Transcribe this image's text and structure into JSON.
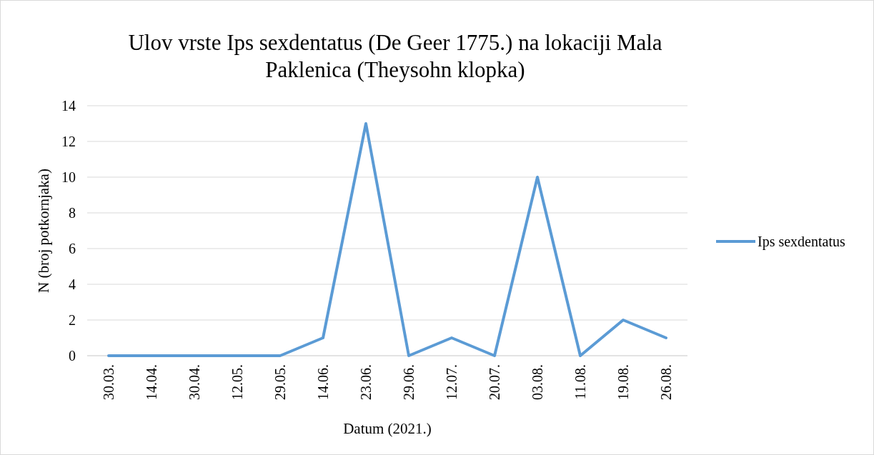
{
  "chart_data": {
    "type": "line",
    "title": "Ulov vrste Ips sexdentatus (De Geer 1775.) na lokaciji Mala Paklenica (Theysohn klopka)",
    "xlabel": "Datum (2021.)",
    "ylabel": "N (broj potkornjaka)",
    "categories": [
      "30.03.",
      "14.04.",
      "30.04.",
      "12.05.",
      "29.05.",
      "14.06.",
      "23.06.",
      "29.06.",
      "12.07.",
      "20.07.",
      "03.08.",
      "11.08.",
      "19.08.",
      "26.08."
    ],
    "series": [
      {
        "name": "Ips sexdentatus",
        "color": "#5b9bd5",
        "values": [
          0,
          0,
          0,
          0,
          0,
          1,
          13,
          0,
          1,
          0,
          10,
          0,
          2,
          1
        ]
      }
    ],
    "ylim": [
      0,
      14
    ],
    "yticks": [
      0,
      2,
      4,
      6,
      8,
      10,
      12,
      14
    ],
    "grid": "y",
    "legend": "right",
    "marker": "none",
    "line_style": "solid"
  }
}
